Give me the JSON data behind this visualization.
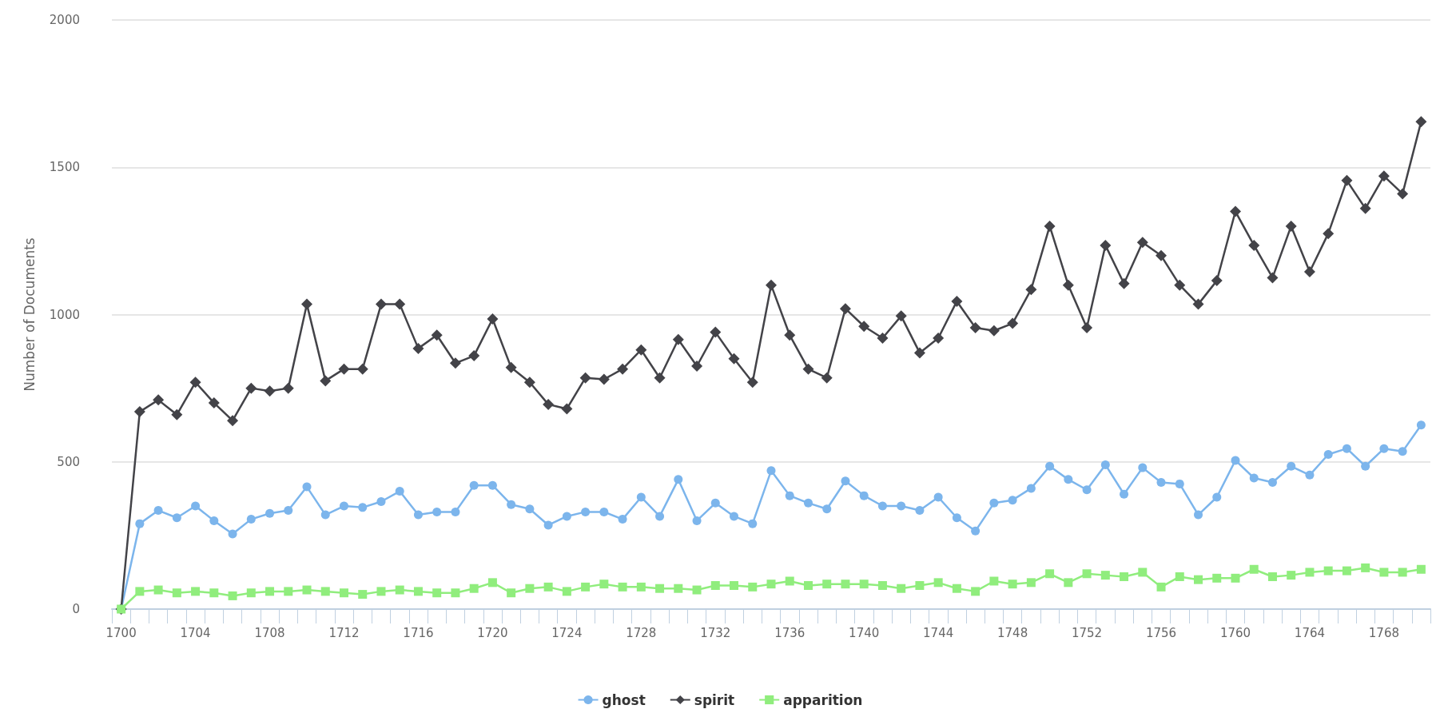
{
  "chart_data": {
    "type": "line",
    "ylabel": "Number of Documents",
    "categories": [
      "1700",
      null,
      null,
      null,
      "1704",
      null,
      null,
      null,
      "1708",
      null,
      null,
      null,
      "1712",
      null,
      null,
      null,
      "1716",
      null,
      null,
      null,
      "1720",
      null,
      null,
      null,
      "1724",
      null,
      null,
      null,
      "1728",
      null,
      null,
      null,
      "1732",
      null,
      null,
      null,
      "1736",
      null,
      null,
      null,
      "1740",
      null,
      null,
      null,
      "1744",
      null,
      null,
      null,
      "1748",
      null,
      null,
      null,
      "1752",
      null,
      null,
      null,
      "1756",
      null,
      null,
      null,
      "1760",
      null,
      null,
      null,
      "1764",
      null,
      null,
      null,
      "1768",
      null,
      null
    ],
    "series": [
      {
        "name": "ghost",
        "color": "#7cb5ec",
        "marker": "circle",
        "values": [
          0,
          290,
          335,
          310,
          350,
          300,
          255,
          305,
          325,
          335,
          415,
          320,
          350,
          345,
          365,
          400,
          320,
          330,
          330,
          420,
          420,
          355,
          340,
          285,
          315,
          330,
          330,
          305,
          380,
          315,
          440,
          300,
          360,
          315,
          290,
          470,
          385,
          360,
          340,
          435,
          385,
          350,
          350,
          335,
          380,
          310,
          265,
          360,
          370,
          410,
          485,
          440,
          405,
          490,
          390,
          480,
          430,
          425,
          320,
          380,
          505,
          445,
          430,
          485,
          455,
          525,
          545,
          485,
          545,
          535,
          625
        ]
      },
      {
        "name": "spirit",
        "color": "#434348",
        "marker": "diamond",
        "values": [
          0,
          670,
          710,
          660,
          770,
          700,
          640,
          750,
          740,
          750,
          1035,
          775,
          815,
          815,
          1035,
          1035,
          885,
          930,
          835,
          860,
          985,
          820,
          770,
          695,
          680,
          785,
          780,
          815,
          880,
          785,
          915,
          825,
          940,
          850,
          770,
          1100,
          930,
          815,
          785,
          1020,
          960,
          920,
          995,
          870,
          920,
          1045,
          955,
          945,
          970,
          1085,
          1300,
          1100,
          955,
          1235,
          1105,
          1245,
          1200,
          1100,
          1035,
          1115,
          1350,
          1235,
          1125,
          1300,
          1145,
          1275,
          1455,
          1360,
          1470,
          1410,
          1655
        ]
      },
      {
        "name": "apparition",
        "color": "#90ed7d",
        "marker": "square",
        "values": [
          0,
          60,
          65,
          55,
          60,
          55,
          45,
          55,
          60,
          60,
          65,
          60,
          55,
          50,
          60,
          65,
          60,
          55,
          55,
          70,
          90,
          55,
          70,
          75,
          60,
          75,
          85,
          75,
          75,
          70,
          70,
          65,
          80,
          80,
          75,
          85,
          95,
          80,
          85,
          85,
          85,
          80,
          70,
          80,
          90,
          70,
          60,
          95,
          85,
          90,
          120,
          90,
          120,
          115,
          110,
          125,
          75,
          110,
          100,
          105,
          105,
          135,
          110,
          115,
          125,
          130,
          130,
          140,
          125,
          125,
          135
        ]
      }
    ],
    "ylim": [
      0,
      2000
    ],
    "yticks": [
      0,
      500,
      1000,
      1500,
      2000
    ],
    "grid": "y",
    "legend": "bottom",
    "line_style": "solid"
  }
}
